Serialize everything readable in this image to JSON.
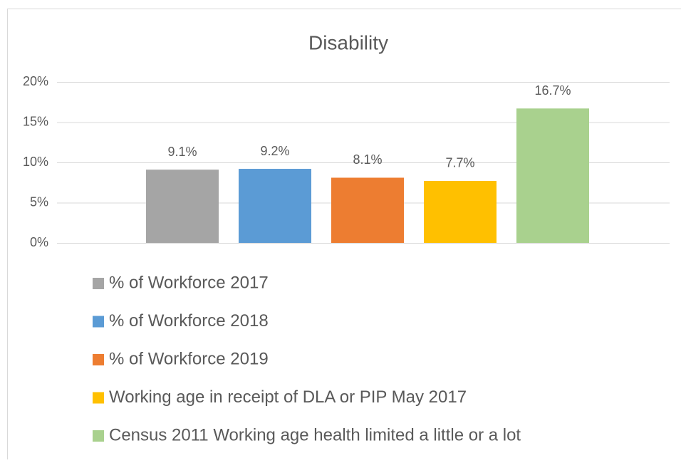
{
  "chart_data": {
    "type": "bar",
    "title": "Disability",
    "series": [
      {
        "name": "% of Workforce 2017",
        "color": "#a5a5a5",
        "values": [
          9.1
        ],
        "value_labels": [
          "9.1%"
        ]
      },
      {
        "name": "% of Workforce 2018",
        "color": "#5b9bd5",
        "values": [
          9.2
        ],
        "value_labels": [
          "9.2%"
        ]
      },
      {
        "name": "% of Workforce 2019",
        "color": "#ed7d31",
        "values": [
          8.1
        ],
        "value_labels": [
          "8.1%"
        ]
      },
      {
        "name": "Working age in receipt of DLA or PIP May 2017",
        "color": "#ffc000",
        "values": [
          7.7
        ],
        "value_labels": [
          "7.7%"
        ]
      },
      {
        "name": "Census 2011 Working age health limited a little or a lot",
        "color": "#a9d18e",
        "values": [
          16.7
        ],
        "value_labels": [
          "16.7%"
        ]
      }
    ],
    "ylim": [
      0,
      20
    ],
    "yticks": [
      {
        "value": 0,
        "label": "0%"
      },
      {
        "value": 5,
        "label": "5%"
      },
      {
        "value": 10,
        "label": "10%"
      },
      {
        "value": 15,
        "label": "15%"
      },
      {
        "value": 20,
        "label": "20%"
      }
    ],
    "grid": true,
    "legend": "bottom"
  }
}
